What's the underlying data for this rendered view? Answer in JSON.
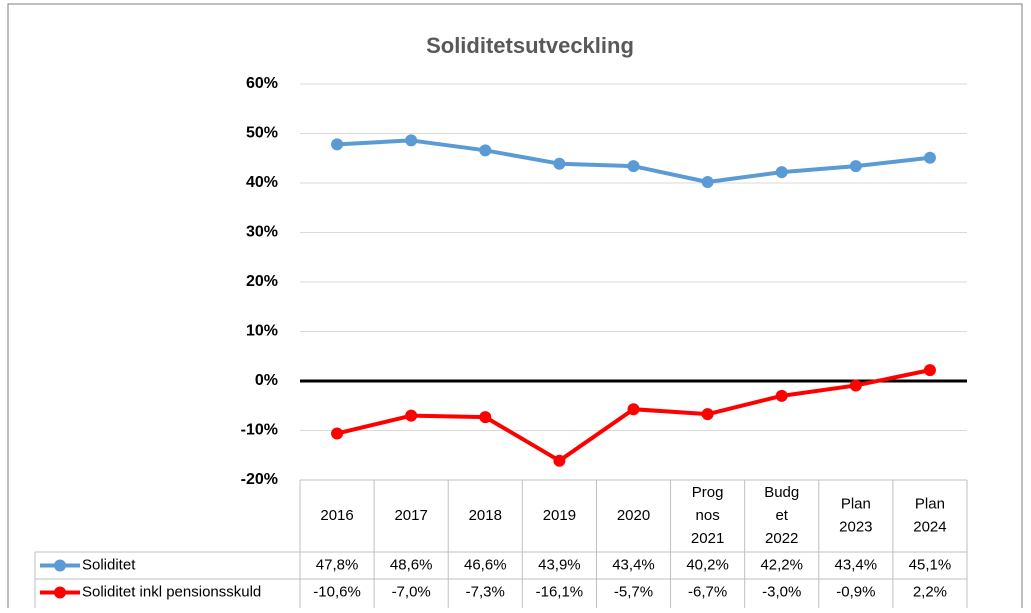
{
  "chart_data": {
    "type": "line",
    "title": "Soliditetsutveckling",
    "categories": [
      "2016",
      "2017",
      "2018",
      "2019",
      "2020",
      "Prognos 2021",
      "Budget 2022",
      "Plan 2023",
      "Plan 2024"
    ],
    "series": [
      {
        "name": "Soliditet",
        "color": "#5b9bd5",
        "values": [
          47.8,
          48.6,
          46.6,
          43.9,
          43.4,
          40.2,
          42.2,
          43.4,
          45.1
        ],
        "value_labels": [
          "47,8%",
          "48,6%",
          "46,6%",
          "43,9%",
          "43,4%",
          "40,2%",
          "42,2%",
          "43,4%",
          "45,1%"
        ]
      },
      {
        "name": "Soliditet inkl pensionsskuld",
        "color": "#ff0000",
        "values": [
          -10.6,
          -7.0,
          -7.3,
          -16.1,
          -5.7,
          -6.7,
          -3.0,
          -0.9,
          2.2
        ],
        "value_labels": [
          "-10,6%",
          "-7,0%",
          "-7,3%",
          "-16,1%",
          "-5,7%",
          "-6,7%",
          "-3,0%",
          "-0,9%",
          "2,2%"
        ]
      }
    ],
    "ylim": [
      -20,
      60
    ],
    "yticks": [
      {
        "value": -20,
        "label": "-20%"
      },
      {
        "value": -10,
        "label": "-10%"
      },
      {
        "value": 0,
        "label": "0%"
      },
      {
        "value": 10,
        "label": "10%"
      },
      {
        "value": 20,
        "label": "20%"
      },
      {
        "value": 30,
        "label": "30%"
      },
      {
        "value": 40,
        "label": "40%"
      },
      {
        "value": 50,
        "label": "50%"
      },
      {
        "value": 60,
        "label": "60%"
      }
    ],
    "grid": true
  }
}
